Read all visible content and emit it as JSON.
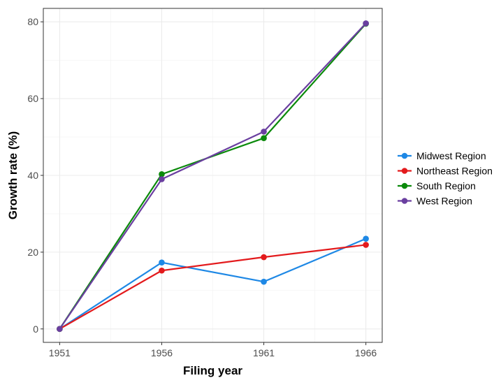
{
  "chart_data": {
    "type": "line",
    "title": "",
    "xlabel": "Filing year",
    "ylabel": "Growth rate (%)",
    "x": [
      1951,
      1956,
      1961,
      1966
    ],
    "x_ticks": [
      "1951",
      "1956",
      "1961",
      "1966"
    ],
    "xlim": [
      1950.2,
      1966.8
    ],
    "y_ticks": [
      "0",
      "20",
      "40",
      "60",
      "80"
    ],
    "ylim": [
      -3.5,
      83.5
    ],
    "grid": true,
    "legend_position": "right",
    "series": [
      {
        "name": "Midwest Region",
        "color": "#1e88e5",
        "values": [
          0,
          17.3,
          12.3,
          23.5
        ]
      },
      {
        "name": "Northeast Region",
        "color": "#e31a1c",
        "values": [
          0,
          15.2,
          18.7,
          21.9
        ]
      },
      {
        "name": "South Region",
        "color": "#0b8a0b",
        "values": [
          0,
          40.3,
          49.7,
          79.5
        ]
      },
      {
        "name": "West Region",
        "color": "#6a3fa0",
        "values": [
          0,
          39.0,
          51.4,
          79.6
        ]
      }
    ]
  }
}
